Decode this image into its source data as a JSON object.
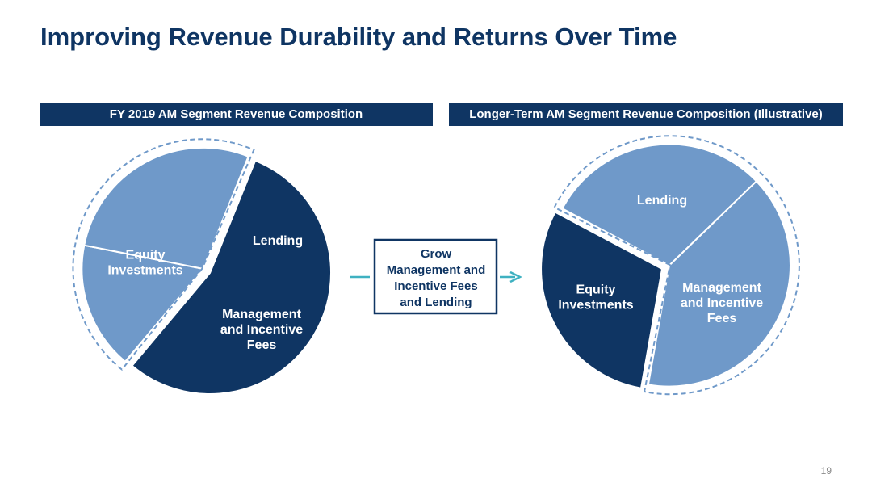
{
  "title": "Improving Revenue Durability and Returns Over Time",
  "page_number": "19",
  "colors": {
    "dark_navy": "#0f3563",
    "medium_blue": "#6f99c9",
    "arrow_teal": "#3fb1c1"
  },
  "arrow_box": {
    "lines": [
      "Grow",
      "Management and",
      "Incentive Fees",
      "and Lending"
    ]
  },
  "chart_data": [
    {
      "type": "pie",
      "title": "FY 2019 AM Segment Revenue Composition",
      "slices": [
        {
          "label_lines": [
            "Equity",
            "Investments"
          ],
          "value": 55,
          "color": "#0f3563",
          "exploded": false
        },
        {
          "label_lines": [
            "Lending"
          ],
          "value": 17,
          "color": "#6f99c9",
          "exploded": true
        },
        {
          "label_lines": [
            "Management",
            "and Incentive",
            "Fees"
          ],
          "value": 28,
          "color": "#6f99c9",
          "exploded": true
        }
      ]
    },
    {
      "type": "pie",
      "title": "Longer-Term AM Segment Revenue Composition (Illustrative)",
      "slices": [
        {
          "label_lines": [
            "Lending"
          ],
          "value": 30,
          "color": "#6f99c9",
          "exploded": true
        },
        {
          "label_lines": [
            "Management",
            "and Incentive",
            "Fees"
          ],
          "value": 40,
          "color": "#6f99c9",
          "exploded": true
        },
        {
          "label_lines": [
            "Equity",
            "Investments"
          ],
          "value": 30,
          "color": "#0f3563",
          "exploded": false
        }
      ]
    }
  ]
}
